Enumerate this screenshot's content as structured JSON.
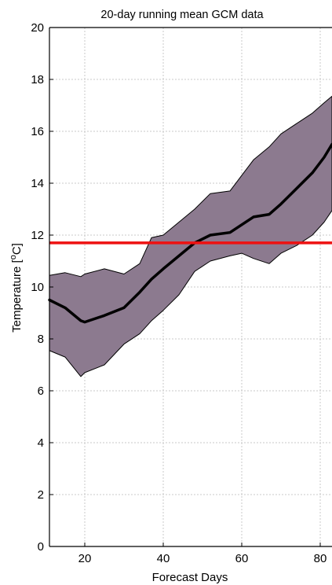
{
  "chart_data": {
    "type": "area",
    "title": "20-day running mean GCM data",
    "xlabel": "Forecast Days",
    "ylabel": "Temperature [°C]",
    "ylabel_parts": {
      "prefix": "Temperature [",
      "superscript": "o",
      "unit": "C",
      "suffix": "]"
    },
    "xlim": [
      11,
      83
    ],
    "ylim": [
      0,
      20
    ],
    "xticks": [
      20,
      40,
      60,
      80
    ],
    "yticks": [
      0,
      2,
      4,
      6,
      8,
      10,
      12,
      14,
      16,
      18,
      20
    ],
    "grid": true,
    "x": [
      11,
      15,
      19,
      20,
      25,
      30,
      34,
      37,
      40,
      44,
      48,
      52,
      57,
      60,
      63,
      67,
      70,
      74,
      78,
      81,
      83
    ],
    "series": [
      {
        "role": "upper-bound",
        "values": [
          10.45,
          10.55,
          10.4,
          10.5,
          10.7,
          10.5,
          10.9,
          11.9,
          12.0,
          12.5,
          13.0,
          13.6,
          13.7,
          14.3,
          14.9,
          15.4,
          15.9,
          16.3,
          16.7,
          17.1,
          17.35
        ]
      },
      {
        "role": "lower-bound",
        "values": [
          7.55,
          7.3,
          6.55,
          6.7,
          7.0,
          7.8,
          8.2,
          8.7,
          9.1,
          9.7,
          10.6,
          11.0,
          11.2,
          11.3,
          11.1,
          10.9,
          11.3,
          11.6,
          12.0,
          12.5,
          12.95
        ]
      },
      {
        "role": "mean",
        "values": [
          9.5,
          9.2,
          8.7,
          8.65,
          8.9,
          9.2,
          9.8,
          10.3,
          10.7,
          11.2,
          11.7,
          12.0,
          12.1,
          12.4,
          12.7,
          12.8,
          13.2,
          13.8,
          14.4,
          15.0,
          15.5
        ]
      }
    ],
    "reference_line": {
      "y": 11.7,
      "color": "#ee1111"
    },
    "colors": {
      "band_fill": "#8c7a8f",
      "band_edge": "#000000",
      "mean_line": "#000000",
      "grid": "#c8c8c8",
      "axis": "#000000"
    }
  }
}
